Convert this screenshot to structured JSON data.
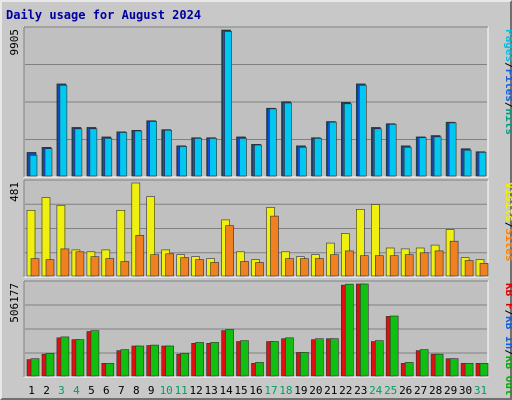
{
  "chart_data": {
    "type": "bar",
    "title": "Daily usage for August 2024",
    "days": [
      "1",
      "2",
      "3",
      "4",
      "5",
      "6",
      "7",
      "8",
      "9",
      "10",
      "11",
      "12",
      "13",
      "14",
      "15",
      "16",
      "17",
      "18",
      "19",
      "20",
      "21",
      "22",
      "23",
      "24",
      "25",
      "26",
      "27",
      "28",
      "29",
      "30",
      "31"
    ],
    "weekend_days": [
      "3",
      "4",
      "10",
      "11",
      "17",
      "18",
      "24",
      "25",
      "31"
    ],
    "panels": [
      {
        "max_label": "9905",
        "ymax": 9905,
        "right_labels": [
          "Pages",
          "/",
          "Files",
          "/",
          "Hits"
        ],
        "right_colors": [
          "#00c0e0",
          "#000000",
          "#1060e0",
          "#000000",
          "#00a080"
        ],
        "series": [
          {
            "name": "Hits",
            "color": "#006070",
            "values": [
              1600,
              1950,
              6250,
              3300,
              3300,
              2650,
              3000,
              3100,
              3750,
              3150,
              2050,
              2600,
              2600,
              9905,
              2650,
              2150,
              4600,
              5050,
              2050,
              2600,
              3700,
              5000,
              6250,
              3300,
              3550,
              2050,
              2650,
              2750,
              3650,
              1850,
              1650
            ]
          },
          {
            "name": "Files",
            "color": "#1050e0",
            "values": [
              1550,
              1900,
              6200,
              3250,
              3250,
              2600,
              2950,
              3050,
              3700,
              3100,
              2000,
              2550,
              2550,
              9850,
              2600,
              2100,
              4550,
              5000,
              2000,
              2550,
              3650,
              4950,
              6200,
              3250,
              3500,
              2000,
              2600,
              2700,
              3600,
              1800,
              1600
            ]
          },
          {
            "name": "Pages",
            "color": "#00c8f0",
            "values": [
              1400,
              1850,
              6150,
              3200,
              3200,
              2550,
              2950,
              3050,
              3700,
              3100,
              2000,
              2550,
              2550,
              9800,
              2550,
              2100,
              4550,
              4950,
              1950,
              2550,
              3650,
              4900,
              6150,
              3200,
              3500,
              1950,
              2600,
              2650,
              3600,
              1750,
              1600
            ]
          }
        ]
      },
      {
        "max_label": "481",
        "ymax": 481,
        "right_labels": [
          "Visits",
          "/",
          "Sites"
        ],
        "right_colors": [
          "#f0f000",
          "#000000",
          "#ff8000"
        ],
        "series": [
          {
            "name": "Visits",
            "color": "#f0f010",
            "values": [
              340,
              405,
              365,
              135,
              125,
              135,
              340,
              481,
              410,
              135,
              110,
              100,
              90,
              290,
              125,
              85,
              355,
              125,
              100,
              110,
              170,
              220,
              345,
              370,
              145,
              140,
              145,
              160,
              240,
              95,
              85
            ]
          },
          {
            "name": "Sites",
            "color": "#f08020",
            "values": [
              90,
              85,
              140,
              125,
              100,
              90,
              75,
              210,
              110,
              115,
              95,
              85,
              70,
              260,
              75,
              70,
              310,
              90,
              90,
              90,
              110,
              130,
              105,
              105,
              105,
              110,
              120,
              130,
              180,
              80,
              65
            ]
          }
        ]
      },
      {
        "max_label": "506177",
        "ymax": 506177,
        "right_labels": [
          "KB F",
          "/",
          "KB In",
          "/",
          "KB Out"
        ],
        "right_colors": [
          "#e00000",
          "#000000",
          "#1060e0",
          "#000000",
          "#00b000"
        ],
        "series": [
          {
            "name": "KB F",
            "color": "#e01010",
            "values": [
              90000,
              120000,
              210000,
              200000,
              245000,
              70000,
              140000,
              165000,
              168000,
              165000,
              120000,
              180000,
              180000,
              250000,
              190000,
              70000,
              190000,
              205000,
              130000,
              200000,
              205000,
              500000,
              506177,
              190000,
              328000,
              70000,
              140000,
              120000,
              95000,
              70000,
              70000
            ]
          },
          {
            "name": "KB Out",
            "color": "#10c010",
            "values": [
              95000,
              125000,
              215000,
              200000,
              250000,
              70000,
              145000,
              165000,
              170000,
              165000,
              125000,
              185000,
              185000,
              255000,
              195000,
              75000,
              190000,
              210000,
              130000,
              205000,
              205000,
              505000,
              506177,
              195000,
              330000,
              75000,
              145000,
              120000,
              95000,
              70000,
              70000
            ]
          }
        ]
      }
    ]
  }
}
